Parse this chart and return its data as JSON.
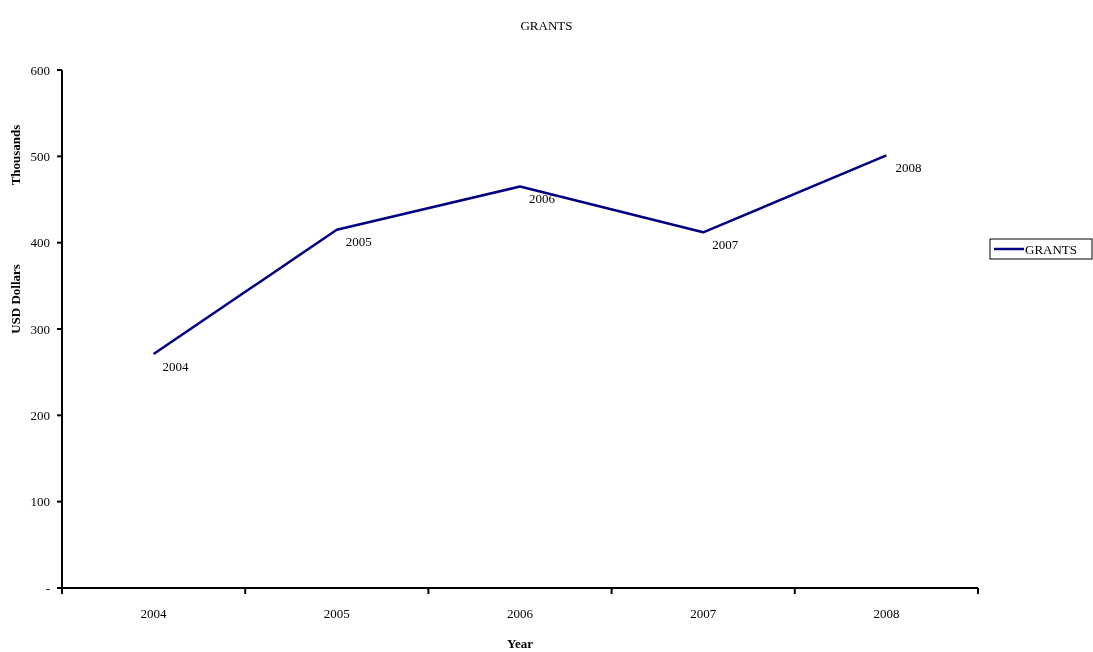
{
  "chart_data": {
    "type": "line",
    "title": "GRANTS",
    "xlabel": "Year",
    "ylabel": "USD Dollars",
    "annotations": [
      "Thousands",
      {
        "text": "2004",
        "x": "2004",
        "y": 271
      },
      {
        "text": "2005",
        "x": "2005",
        "y": 415
      },
      {
        "text": "2006",
        "x": "2006",
        "y": 465
      },
      {
        "text": "2007",
        "x": "2007",
        "y": 412
      },
      {
        "text": "2008",
        "x": "2008",
        "y": 501
      }
    ],
    "categories": [
      "2004",
      "2005",
      "2006",
      "2007",
      "2008"
    ],
    "series": [
      {
        "name": "GRANTS",
        "color": "#000080",
        "values": [
          271,
          415,
          465,
          412,
          501
        ]
      }
    ],
    "ylim": [
      0,
      600
    ],
    "yticks": [
      {
        "value": 0,
        "label": "-"
      },
      100,
      200,
      300,
      400,
      500,
      600
    ],
    "grid": false,
    "legend": "right",
    "marker": "none",
    "line_style": "solid"
  }
}
